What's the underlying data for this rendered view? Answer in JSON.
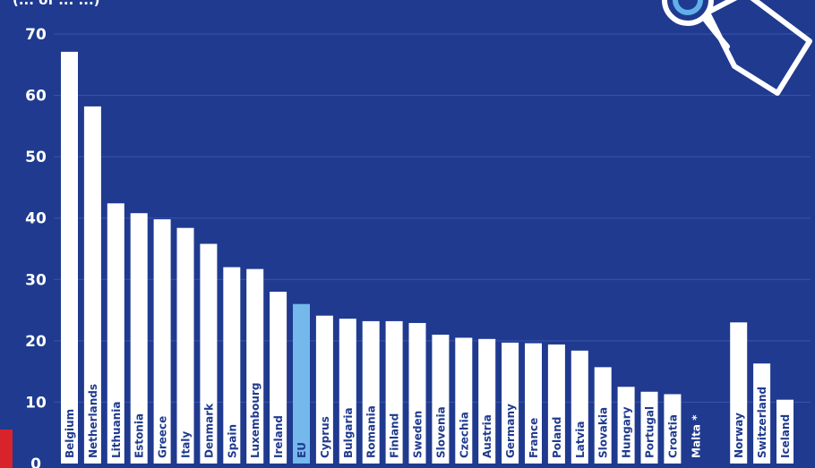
{
  "header": {
    "subtitle_fragment": "(... of ... ...)"
  },
  "chart_data": {
    "type": "bar",
    "categories": [
      "Belgium",
      "Netherlands",
      "Lithuania",
      "Estonia",
      "Greece",
      "Italy",
      "Denmark",
      "Spain",
      "Luxembourg",
      "Ireland",
      "EU",
      "Cyprus",
      "Bulgaria",
      "Romania",
      "Finland",
      "Sweden",
      "Slovenia",
      "Czechia",
      "Austria",
      "Germany",
      "France",
      "Poland",
      "Latvia",
      "Slovakia",
      "Hungary",
      "Portugal",
      "Croatia",
      "Malta *",
      "Norway",
      "Switzerland",
      "Iceland"
    ],
    "values": [
      67.1,
      58.2,
      42.4,
      40.8,
      39.8,
      38.4,
      35.8,
      32.0,
      31.7,
      28.0,
      26.0,
      24.1,
      23.6,
      23.2,
      23.2,
      22.9,
      21.0,
      20.5,
      20.3,
      19.7,
      19.6,
      19.4,
      18.4,
      15.7,
      12.5,
      11.7,
      11.3,
      null,
      23.0,
      16.3,
      10.4
    ],
    "highlight": "EU",
    "yticks": [
      0,
      10,
      20,
      30,
      40,
      50,
      60,
      70
    ],
    "ylim": [
      0,
      70
    ],
    "grid": true,
    "colors": {
      "background": "#1f3a8f",
      "bar": "#ffffff",
      "highlight_bar": "#75b8ec",
      "gridline": "#3a55a8",
      "label_text": "#1f3a8f",
      "axis_text": "#ffffff",
      "accent": "#d8232a"
    }
  },
  "decoration": {
    "icon": "price-tag-icon"
  }
}
